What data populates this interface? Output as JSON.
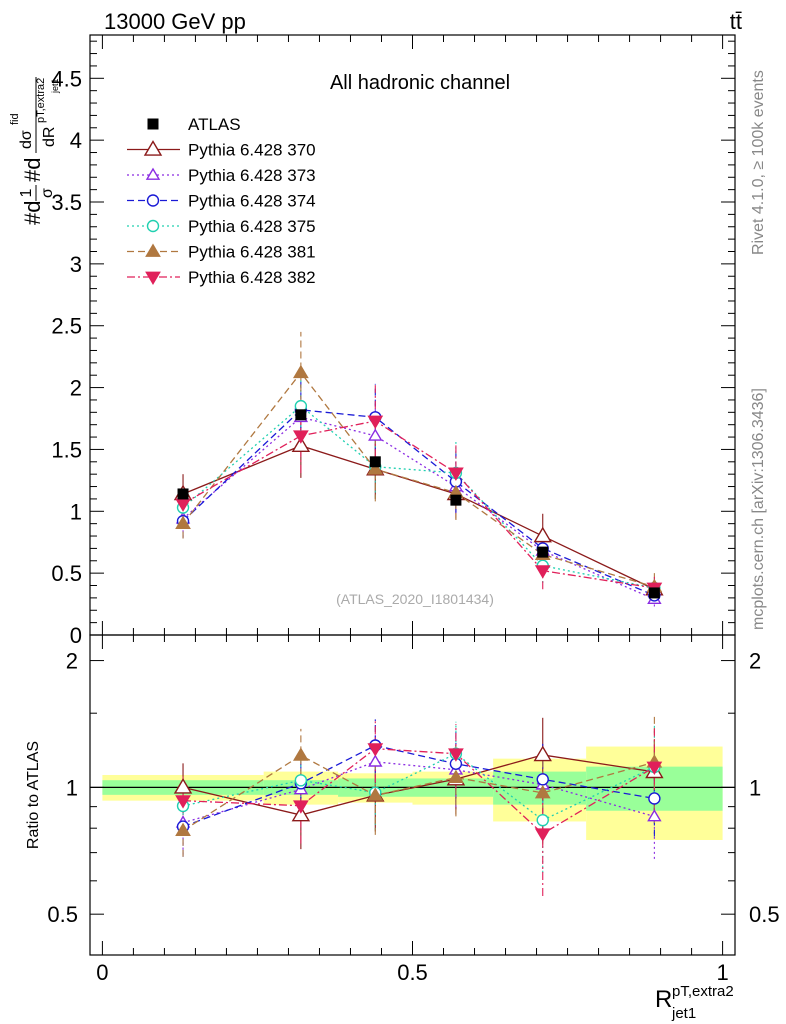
{
  "header": {
    "left_label": "13000 GeV pp",
    "right_label": "tt̄"
  },
  "side_labels": {
    "rivet": "Rivet 4.1.0, ≥ 100k events",
    "mcplots": "mcplots.cern.ch [arXiv:1306.3436]"
  },
  "chart_data": {
    "type": "scatter",
    "title": "All hadronic channel",
    "analysis_tag": "(ATLAS_2020_I1801434)",
    "ylabel": "#d(1/σ)#d(dσ^fid/dR^{pT,extra2}_{jet1})",
    "ylabel_parts": {
      "a": "#d",
      "b1": "1",
      "b2": "σ",
      "c": "#d",
      "d1": "dσ",
      "d1sup": "fid",
      "d2": "dR",
      "d2sup": "pT,extra2",
      "d2sub": "jet1"
    },
    "xlabel": {
      "main": "R",
      "sup": "pT,extra2",
      "sub": "jet1"
    },
    "xlim": [
      -0.02,
      1.02
    ],
    "ylim": [
      0,
      4.85
    ],
    "xticks": [
      "0",
      "0.5",
      "1"
    ],
    "yticks": [
      "0",
      "0.5",
      "1",
      "1.5",
      "2",
      "2.5",
      "3",
      "3.5",
      "4",
      "4.5"
    ],
    "x_values": [
      0.13,
      0.32,
      0.44,
      0.57,
      0.71,
      0.89
    ],
    "data": {
      "name": "ATLAS",
      "values": [
        1.14,
        1.78,
        1.4,
        1.09,
        0.67,
        0.34
      ],
      "bin_edges": [
        0.0,
        0.26,
        0.38,
        0.5,
        0.63,
        0.78,
        1.0
      ],
      "ratio_band_stat": [
        0.04,
        0.04,
        0.05,
        0.05,
        0.09,
        0.12
      ],
      "ratio_band_total": [
        0.07,
        0.09,
        0.08,
        0.09,
        0.17,
        0.25
      ]
    },
    "series": [
      {
        "name": "Pythia 6.428 370",
        "color": "#8b1a1a",
        "marker": "triangle-open",
        "dash": "solid",
        "values": [
          1.14,
          1.53,
          1.34,
          1.14,
          0.8,
          0.37
        ],
        "errors": [
          0.16,
          0.26,
          0.24,
          0.2,
          0.18,
          0.07
        ]
      },
      {
        "name": "Pythia 6.428 373",
        "color": "#8a2be2",
        "marker": "triangle-open-small",
        "dash": "dotted",
        "values": [
          0.94,
          1.76,
          1.61,
          1.2,
          0.68,
          0.29
        ],
        "errors": [
          0.15,
          0.28,
          0.28,
          0.22,
          0.16,
          0.06
        ]
      },
      {
        "name": "Pythia 6.428 374",
        "color": "#1a1ad6",
        "marker": "circle-open",
        "dash": "dashed",
        "values": [
          0.92,
          1.82,
          1.76,
          1.24,
          0.7,
          0.32
        ],
        "errors": [
          0.14,
          0.27,
          0.27,
          0.25,
          0.15,
          0.06
        ]
      },
      {
        "name": "Pythia 6.428 375",
        "color": "#20d0b0",
        "marker": "circle-open",
        "dash": "dotted",
        "values": [
          1.03,
          1.85,
          1.36,
          1.31,
          0.56,
          0.38
        ],
        "errors": [
          0.15,
          0.25,
          0.25,
          0.25,
          0.14,
          0.1
        ]
      },
      {
        "name": "Pythia 6.428 381",
        "color": "#b07840",
        "marker": "triangle-filled",
        "dash": "dashed",
        "values": [
          0.9,
          2.12,
          1.34,
          1.15,
          0.65,
          0.39
        ],
        "errors": [
          0.12,
          0.33,
          0.26,
          0.22,
          0.16,
          0.11
        ]
      },
      {
        "name": "Pythia 6.428 382",
        "color": "#e0205a",
        "marker": "triangle-down-filled",
        "dash": "dashdot",
        "values": [
          1.06,
          1.61,
          1.73,
          1.31,
          0.52,
          0.38
        ],
        "errors": [
          0.15,
          0.3,
          0.29,
          0.23,
          0.15,
          0.09
        ]
      }
    ],
    "ratio_panel": {
      "ylabel": "Ratio to ATLAS",
      "ylim": [
        0.4,
        2.3
      ],
      "yticks": [
        "0.5",
        "1",
        "2"
      ]
    }
  }
}
